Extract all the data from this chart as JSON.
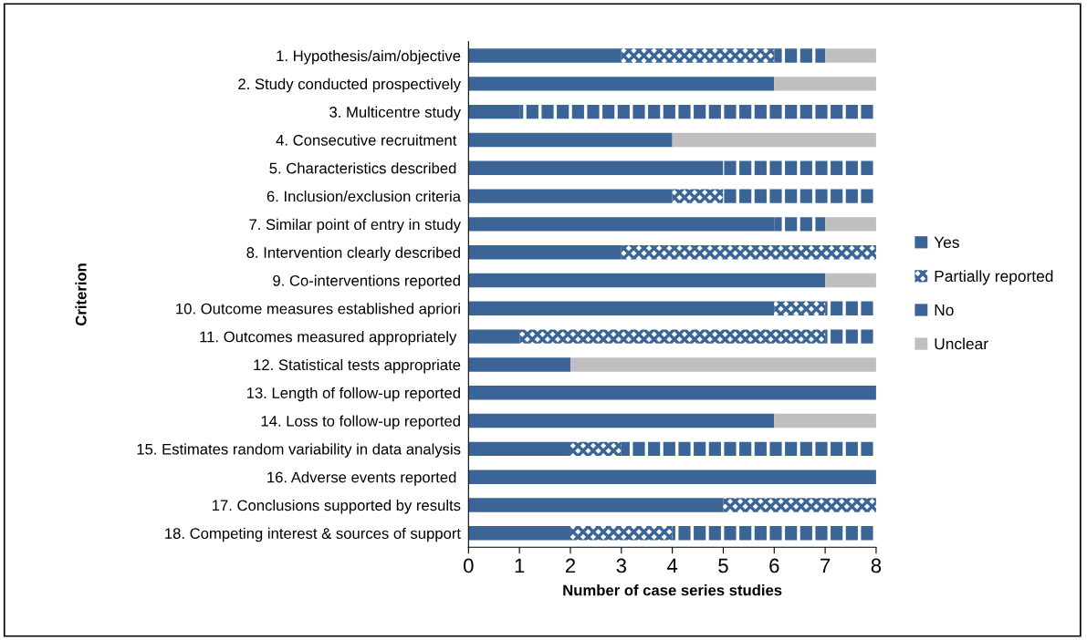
{
  "chart_data": {
    "type": "bar",
    "orientation": "horizontal",
    "stacked": true,
    "xlabel": "Number of case series studies",
    "ylabel": "Criterion",
    "categories": [
      "1. Hypothesis/aim/objective",
      "2. Study conducted prospectively",
      "3. Multicentre study",
      "4. Consecutive recruitment ",
      "5. Characteristics described ",
      "6. Inclusion/exclusion criteria",
      "7. Similar point of entry in study",
      "8. Intervention clearly described",
      "9. Co-interventions reported",
      "10. Outcome measures established apriori",
      "11. Outcomes measured appropriately ",
      "12. Statistical tests appropriate",
      "13. Length of follow-up reported",
      "14. Loss to follow-up reported",
      "15. Estimates random variability in data analysis",
      "16. Adverse events reported ",
      "17. Conclusions supported by results",
      "18. Competing interest & sources of support"
    ],
    "series": [
      {
        "name": "Yes",
        "color": "#3b6597",
        "values": [
          3,
          6,
          1,
          4,
          5,
          4,
          6,
          3,
          7,
          6,
          1,
          2,
          8,
          6,
          2,
          8,
          5,
          2
        ]
      },
      {
        "name": "Partially reported",
        "color": "#3b6597",
        "values": [
          3,
          0,
          0,
          0,
          0,
          1,
          0,
          5,
          0,
          1,
          6,
          0,
          0,
          0,
          1,
          0,
          3,
          2
        ]
      },
      {
        "name": "No",
        "color": "#3b6597",
        "values": [
          1,
          0,
          7,
          0,
          3,
          3,
          1,
          0,
          0,
          1,
          1,
          0,
          0,
          0,
          5,
          0,
          0,
          4
        ]
      },
      {
        "name": "Unclear",
        "color": "#bfbfbf",
        "values": [
          1,
          2,
          0,
          4,
          0,
          0,
          1,
          0,
          1,
          0,
          0,
          6,
          0,
          2,
          0,
          0,
          0,
          0
        ]
      }
    ],
    "xlim": [
      0,
      8
    ],
    "xticks": [
      0,
      1,
      2,
      3,
      4,
      5,
      6,
      7,
      8
    ],
    "grid": false,
    "legend": "right"
  }
}
